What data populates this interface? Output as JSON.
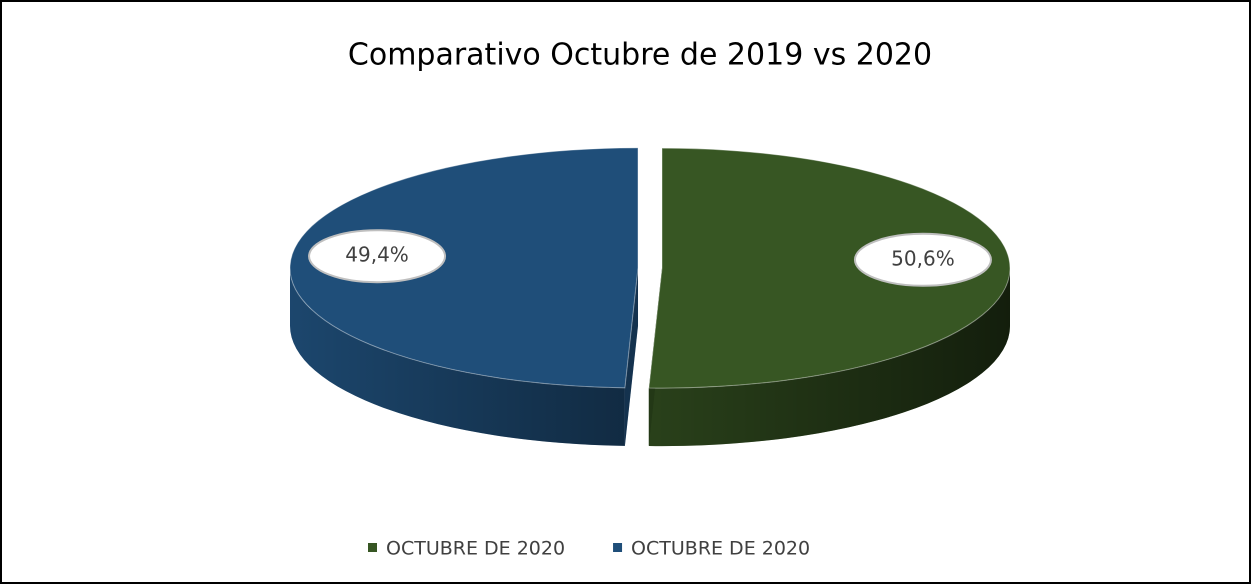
{
  "chart_data": {
    "type": "pie",
    "title": "Comparativo Octubre de 2019 vs 2020",
    "categories": [
      "OCTUBRE DE 2020",
      "OCTUBRE DE 2020"
    ],
    "values": [
      50.6,
      49.4
    ],
    "value_labels": [
      "50,6%",
      "49,4%"
    ],
    "colors": [
      "#375623",
      "#1f4e79"
    ],
    "legend": "bottom"
  }
}
